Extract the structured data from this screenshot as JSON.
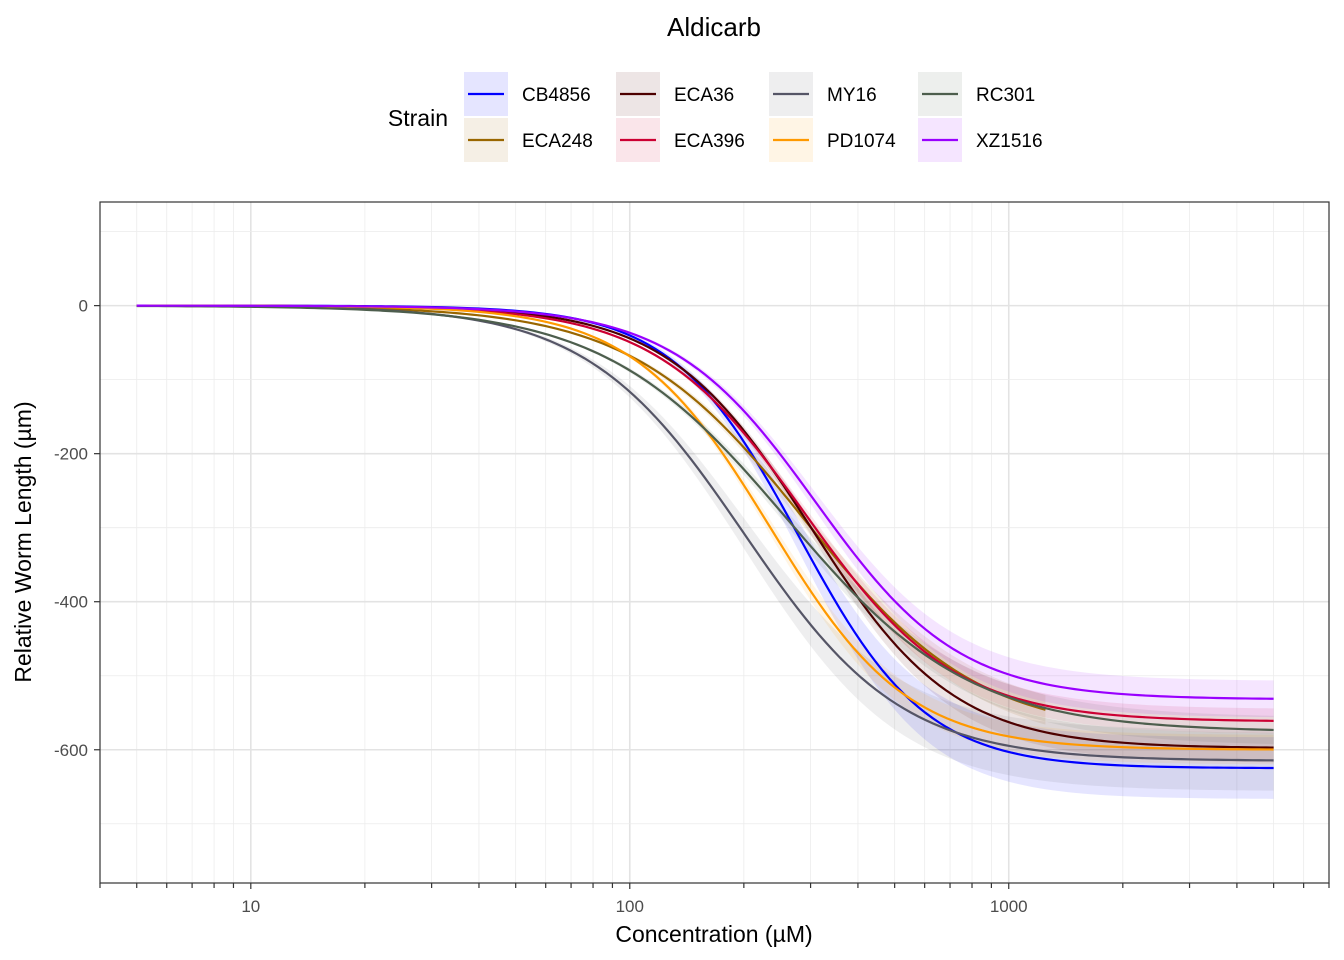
{
  "chart_data": {
    "type": "line",
    "title": "Aldicarb",
    "xlabel": "Concentration (µM)",
    "ylabel": "Relative Worm Length (µm)",
    "x_scale": "log10",
    "xlim": [
      4,
      7000
    ],
    "ylim": [
      -780,
      140
    ],
    "x_ticks": [
      {
        "value": 10,
        "label": "10"
      },
      {
        "value": 100,
        "label": "100"
      },
      {
        "value": 1000,
        "label": "1000"
      }
    ],
    "y_ticks": [
      {
        "value": 0,
        "label": "0"
      },
      {
        "value": -200,
        "label": "-200"
      },
      {
        "value": -400,
        "label": "-400"
      },
      {
        "value": -600,
        "label": "-600"
      }
    ],
    "grid": true,
    "legend": {
      "title": "Strain",
      "position": "top"
    },
    "series": [
      {
        "name": "CB4856",
        "color": "#0000ff",
        "x_range": [
          5,
          5000
        ],
        "ec50": 280,
        "hill": 2.6,
        "bottom": -625,
        "band": 40
      },
      {
        "name": "ECA248",
        "color": "#996600",
        "x_range": [
          5,
          1250
        ],
        "ec50": 290,
        "hill": 1.9,
        "bottom": -580,
        "band": 22
      },
      {
        "name": "ECA36",
        "color": "#4d0000",
        "x_range": [
          5,
          5000
        ],
        "ec50": 300,
        "hill": 2.3,
        "bottom": -598,
        "band": 20
      },
      {
        "name": "ECA396",
        "color": "#cc0033",
        "x_range": [
          5,
          5000
        ],
        "ec50": 290,
        "hill": 2.2,
        "bottom": -562,
        "band": 18
      },
      {
        "name": "MY16",
        "color": "#555566",
        "x_range": [
          5,
          5000
        ],
        "ec50": 200,
        "hill": 2.1,
        "bottom": -615,
        "band": 40
      },
      {
        "name": "PD1074",
        "color": "#ff9900",
        "x_range": [
          5,
          5000
        ],
        "ec50": 235,
        "hill": 2.4,
        "bottom": -600,
        "band": 20
      },
      {
        "name": "RC301",
        "color": "#4d5e4d",
        "x_range": [
          5,
          5000
        ],
        "ec50": 260,
        "hill": 1.8,
        "bottom": -576,
        "band": 20
      },
      {
        "name": "XZ1516",
        "color": "#9900ff",
        "x_range": [
          5,
          5000
        ],
        "ec50": 310,
        "hill": 2.3,
        "bottom": -532,
        "band": 28
      }
    ]
  }
}
